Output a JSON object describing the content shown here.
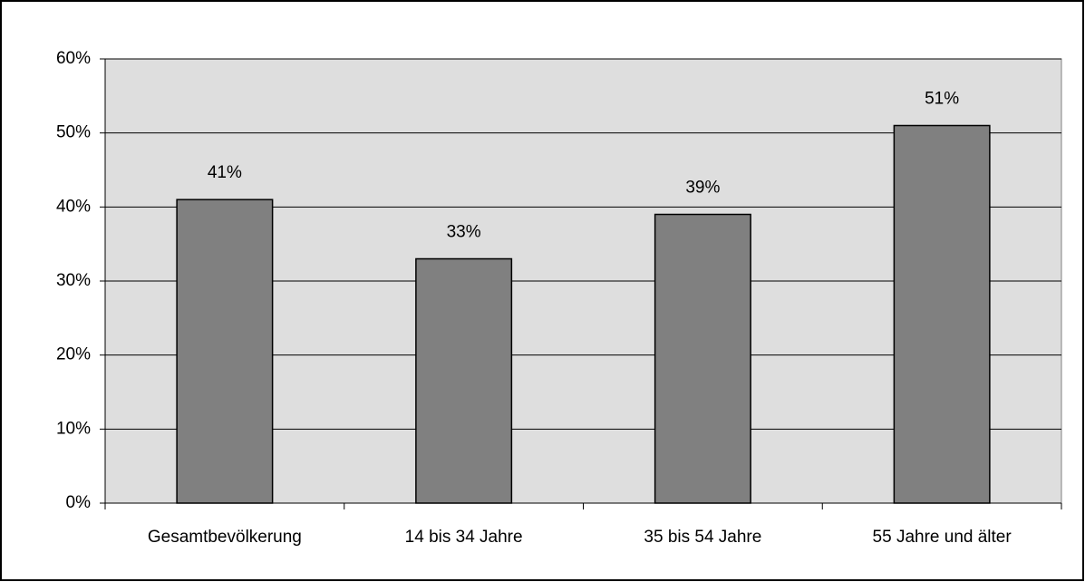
{
  "chart_data": {
    "type": "bar",
    "categories": [
      "Gesamtbevölkerung",
      "14 bis 34 Jahre",
      "35 bis 54 Jahre",
      "55 Jahre und älter"
    ],
    "values": [
      41,
      33,
      39,
      51
    ],
    "value_labels": [
      "41%",
      "33%",
      "39%",
      "51%"
    ],
    "color": "#808080",
    "ylim": [
      0,
      60
    ],
    "yticks": [
      {
        "value": 0,
        "label": "0%"
      },
      {
        "value": 10,
        "label": "10%"
      },
      {
        "value": 20,
        "label": "20%"
      },
      {
        "value": 30,
        "label": "30%"
      },
      {
        "value": 40,
        "label": "40%"
      },
      {
        "value": 50,
        "label": "50%"
      },
      {
        "value": 60,
        "label": "60%"
      }
    ],
    "grid": true
  }
}
